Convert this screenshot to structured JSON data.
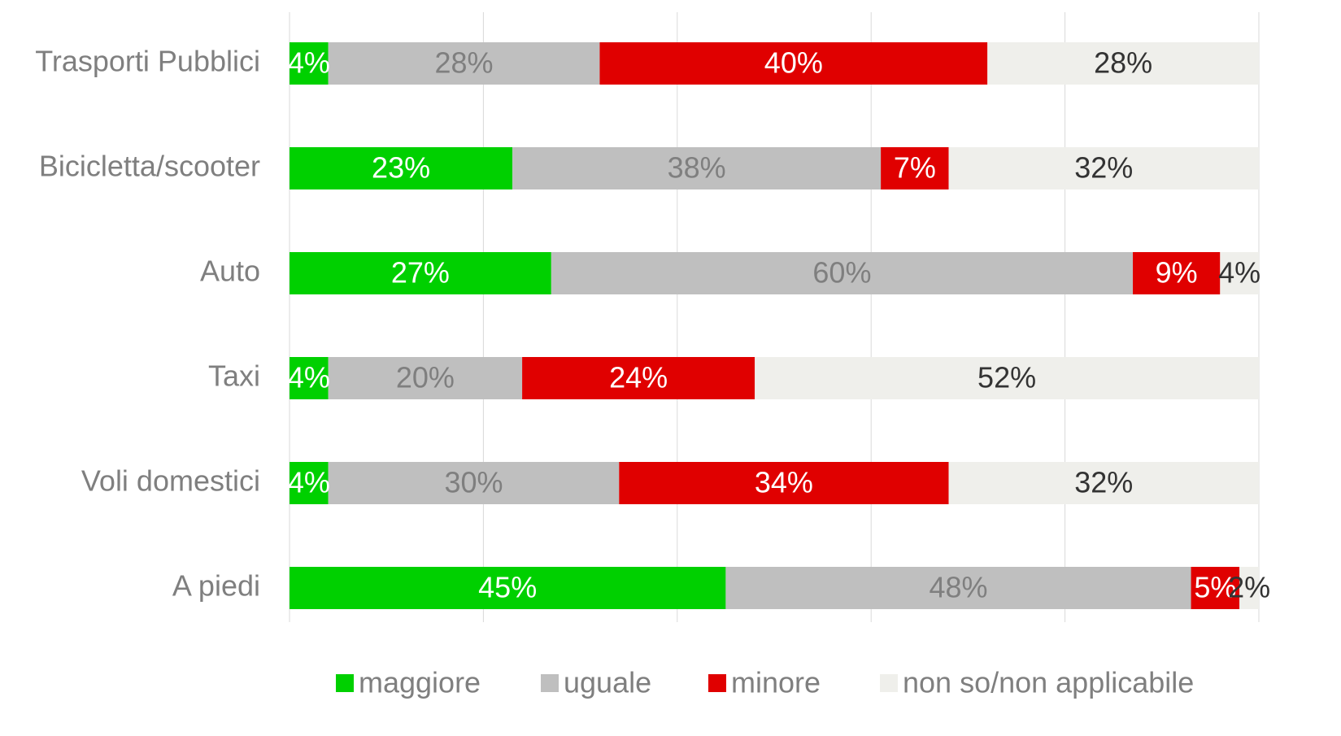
{
  "chart_data": {
    "type": "stacked_barh",
    "categories": [
      "Trasporti Pubblici",
      "Bicicletta/scooter",
      "Auto",
      "Taxi",
      "Voli domestici",
      "A piedi"
    ],
    "series": [
      {
        "name": "maggiore",
        "color": "#00d000",
        "values": [
          4,
          23,
          27,
          4,
          4,
          45
        ],
        "value_labels": [
          "4%",
          "23%",
          "27%",
          "4%",
          "4%",
          "45%"
        ]
      },
      {
        "name": "uguale",
        "color": "#bfbfbf",
        "values": [
          28,
          38,
          60,
          20,
          30,
          48
        ],
        "value_labels": [
          "28%",
          "38%",
          "60%",
          "20%",
          "30%",
          "48%"
        ]
      },
      {
        "name": "minore",
        "color": "#e00000",
        "values": [
          40,
          7,
          9,
          24,
          34,
          5
        ],
        "value_labels": [
          "40%",
          "7%",
          "9%",
          "24%",
          "34%",
          "5%"
        ]
      },
      {
        "name": "non so/non applicabile",
        "color": "#efefeb",
        "values": [
          28,
          32,
          4,
          52,
          32,
          2
        ],
        "value_labels": [
          "28%",
          "32%",
          "4%",
          "52%",
          "32%",
          "2%"
        ]
      }
    ],
    "xlim": [
      0,
      100
    ],
    "xticks": [
      0,
      20,
      40,
      60,
      80,
      100
    ],
    "grid": true,
    "legend": "bottom"
  }
}
